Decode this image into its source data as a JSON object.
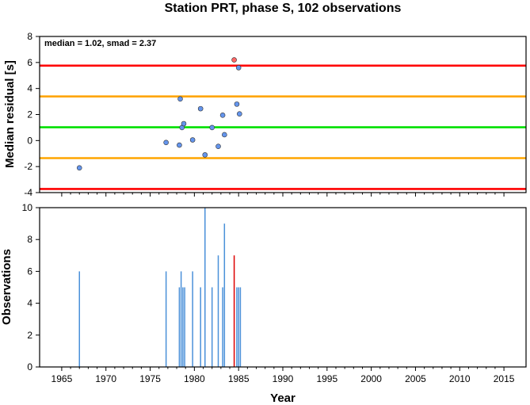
{
  "chart_data": [
    {
      "type": "scatter",
      "title": "Station PRT, phase S, 102 observations",
      "annotation": "median = 1.02, smad = 2.37",
      "xlabel": "",
      "ylabel": "Median residual [s]",
      "xlim": [
        1962.5,
        2017.5
      ],
      "ylim": [
        -4,
        8
      ],
      "yticks": [
        -4,
        -2,
        0,
        2,
        4,
        6,
        8
      ],
      "grid": false,
      "reference_lines": [
        {
          "value": 5.76,
          "color": "#ff0000"
        },
        {
          "value": 3.39,
          "color": "#ffa500"
        },
        {
          "value": 1.02,
          "color": "#00e000"
        },
        {
          "value": -1.35,
          "color": "#ffa500"
        },
        {
          "value": -3.72,
          "color": "#ff0000"
        }
      ],
      "series": [
        {
          "color": "#6495ed",
          "points": [
            [
              1967.0,
              -2.1
            ],
            [
              1976.8,
              -0.15
            ],
            [
              1978.3,
              -0.35
            ],
            [
              1978.4,
              3.2
            ],
            [
              1978.6,
              1.0
            ],
            [
              1978.8,
              1.3
            ],
            [
              1979.8,
              0.05
            ],
            [
              1980.7,
              2.45
            ],
            [
              1981.2,
              -1.1
            ],
            [
              1982.0,
              1.0
            ],
            [
              1982.7,
              -0.45
            ],
            [
              1983.2,
              1.95
            ],
            [
              1983.4,
              0.45
            ],
            [
              1984.8,
              2.8
            ],
            [
              1985.0,
              5.6
            ],
            [
              1985.1,
              2.05
            ]
          ]
        },
        {
          "color": "#ff6666",
          "points": [
            [
              1984.5,
              6.2
            ]
          ]
        }
      ]
    },
    {
      "type": "bar",
      "xlabel": "Year",
      "ylabel": "Observations",
      "xlim": [
        1962.5,
        2017.5
      ],
      "ylim": [
        0,
        10
      ],
      "xticks": [
        1965,
        1970,
        1975,
        1980,
        1985,
        1990,
        1995,
        2000,
        2005,
        2010,
        2015
      ],
      "yticks": [
        0,
        2,
        4,
        6,
        8,
        10
      ],
      "grid": false,
      "series": [
        {
          "color": "#4a90d9",
          "bars": [
            [
              1967.0,
              6
            ],
            [
              1976.8,
              6
            ],
            [
              1978.3,
              5
            ],
            [
              1978.5,
              6
            ],
            [
              1978.7,
              5
            ],
            [
              1978.9,
              5
            ],
            [
              1979.8,
              6
            ],
            [
              1980.7,
              5
            ],
            [
              1981.2,
              10
            ],
            [
              1982.0,
              5
            ],
            [
              1982.7,
              7
            ],
            [
              1983.2,
              5
            ],
            [
              1983.4,
              9
            ],
            [
              1984.8,
              5
            ],
            [
              1985.0,
              5
            ],
            [
              1985.2,
              5
            ]
          ]
        },
        {
          "color": "#dd0000",
          "bars": [
            [
              1984.5,
              7
            ]
          ]
        }
      ]
    }
  ]
}
